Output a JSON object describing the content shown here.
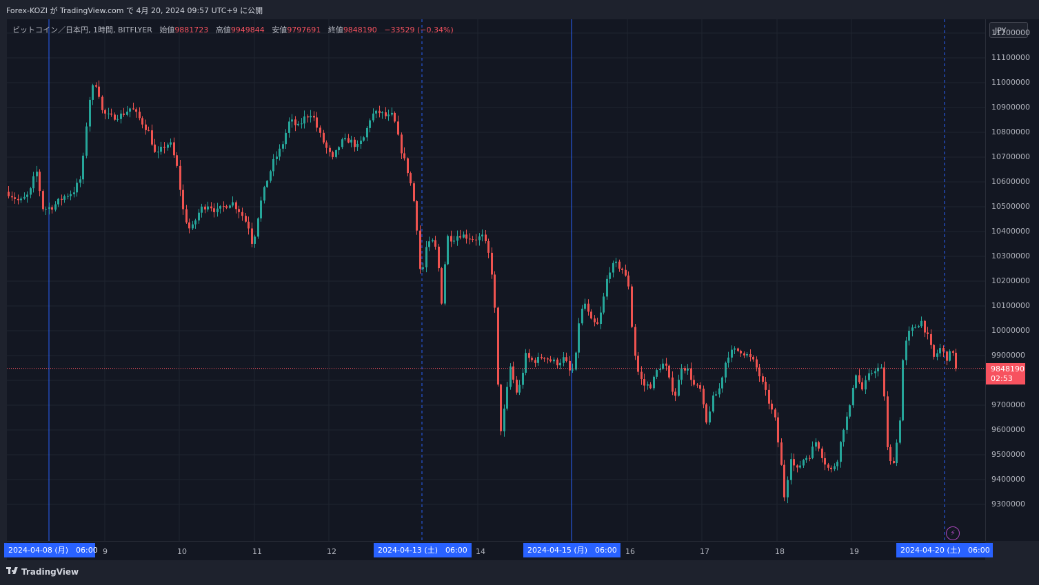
{
  "header": {
    "published": "Forex-KOZI が TradingView.com で 4月 20, 2024 09:57 UTC+9 に公開"
  },
  "legend": {
    "symbol": "ビットコイン／日本円, 1時間, BITFLYER",
    "open_label": "始値",
    "open": "9881723",
    "high_label": "高値",
    "high": "9949844",
    "low_label": "安値",
    "low": "9797691",
    "close_label": "終値",
    "close": "9848190",
    "change": "−33529 (−0.34%)"
  },
  "currency": "JPY",
  "last_price": {
    "value": "9848190",
    "countdown": "02:53"
  },
  "footer": {
    "brand": "TradingView"
  },
  "icons": [
    "tradingview-logo-icon",
    "lightning-icon"
  ],
  "colors": {
    "up": "#26a69a",
    "down": "#ef5350",
    "background": "#131722",
    "highlight": "#2962ff",
    "last": "#f7525f"
  },
  "chart_data": {
    "type": "candlestick",
    "timeframe": "1時間",
    "ylim": [
      9220000,
      11300000
    ],
    "y_ticks": [
      "11200000",
      "11100000",
      "11000000",
      "10900000",
      "10800000",
      "10700000",
      "10600000",
      "10500000",
      "10400000",
      "10300000",
      "10200000",
      "10100000",
      "10000000",
      "9900000",
      "9800000",
      "9700000",
      "9600000",
      "9500000",
      "9400000",
      "9300000"
    ],
    "x_labels": [
      "9",
      "10",
      "11",
      "12",
      "14",
      "16",
      "17",
      "18",
      "19"
    ],
    "highlight_labels": [
      "2024-04-08 (月)　06:00",
      "2024-04-13 (土)　06:00",
      "2024-04-15 (月)　06:00",
      "2024-04-20 (土)　06:00"
    ],
    "last_price": 9848190,
    "path": [
      [
        0,
        10560000
      ],
      [
        18,
        10520000
      ],
      [
        32,
        10550000
      ],
      [
        42,
        10650000
      ],
      [
        52,
        10490000
      ],
      [
        66,
        10500000
      ],
      [
        82,
        10540000
      ],
      [
        96,
        10560000
      ],
      [
        108,
        10620000
      ],
      [
        118,
        10920000
      ],
      [
        124,
        10980000
      ],
      [
        130,
        11000000
      ],
      [
        138,
        10880000
      ],
      [
        150,
        10860000
      ],
      [
        166,
        10870000
      ],
      [
        180,
        10900000
      ],
      [
        196,
        10840000
      ],
      [
        206,
        10800000
      ],
      [
        216,
        10700000
      ],
      [
        226,
        10740000
      ],
      [
        236,
        10760000
      ],
      [
        246,
        10660000
      ],
      [
        256,
        10470000
      ],
      [
        266,
        10400000
      ],
      [
        280,
        10490000
      ],
      [
        292,
        10510000
      ],
      [
        304,
        10480000
      ],
      [
        314,
        10500000
      ],
      [
        326,
        10520000
      ],
      [
        338,
        10480000
      ],
      [
        350,
        10420000
      ],
      [
        356,
        10340000
      ],
      [
        366,
        10500000
      ],
      [
        376,
        10600000
      ],
      [
        386,
        10680000
      ],
      [
        398,
        10740000
      ],
      [
        410,
        10850000
      ],
      [
        422,
        10820000
      ],
      [
        432,
        10860000
      ],
      [
        442,
        10880000
      ],
      [
        452,
        10800000
      ],
      [
        462,
        10740000
      ],
      [
        472,
        10690000
      ],
      [
        484,
        10760000
      ],
      [
        496,
        10770000
      ],
      [
        508,
        10740000
      ],
      [
        518,
        10780000
      ],
      [
        528,
        10870000
      ],
      [
        540,
        10880000
      ],
      [
        552,
        10860000
      ],
      [
        560,
        10870000
      ],
      [
        570,
        10740000
      ],
      [
        580,
        10650000
      ],
      [
        588,
        10560000
      ],
      [
        594,
        10420000
      ],
      [
        600,
        10200000
      ],
      [
        608,
        10340000
      ],
      [
        618,
        10360000
      ],
      [
        624,
        10310000
      ],
      [
        630,
        10110000
      ],
      [
        638,
        10380000
      ],
      [
        646,
        10370000
      ],
      [
        656,
        10390000
      ],
      [
        666,
        10380000
      ],
      [
        678,
        10370000
      ],
      [
        690,
        10380000
      ],
      [
        698,
        10310000
      ],
      [
        706,
        10180000
      ],
      [
        710,
        9840000
      ],
      [
        716,
        9600000
      ],
      [
        722,
        9700000
      ],
      [
        730,
        9860000
      ],
      [
        738,
        9750000
      ],
      [
        744,
        9780000
      ],
      [
        752,
        9900000
      ],
      [
        760,
        9880000
      ],
      [
        768,
        9880000
      ],
      [
        778,
        9900000
      ],
      [
        788,
        9880000
      ],
      [
        798,
        9870000
      ],
      [
        808,
        9890000
      ],
      [
        818,
        9820000
      ],
      [
        824,
        9880000
      ],
      [
        830,
        10060000
      ],
      [
        838,
        10110000
      ],
      [
        846,
        10040000
      ],
      [
        856,
        10020000
      ],
      [
        862,
        10080000
      ],
      [
        872,
        10240000
      ],
      [
        882,
        10270000
      ],
      [
        892,
        10250000
      ],
      [
        902,
        10180000
      ],
      [
        908,
        9940000
      ],
      [
        916,
        9820000
      ],
      [
        924,
        9780000
      ],
      [
        934,
        9780000
      ],
      [
        944,
        9850000
      ],
      [
        954,
        9870000
      ],
      [
        962,
        9780000
      ],
      [
        970,
        9740000
      ],
      [
        978,
        9860000
      ],
      [
        988,
        9840000
      ],
      [
        996,
        9780000
      ],
      [
        1006,
        9760000
      ],
      [
        1014,
        9620000
      ],
      [
        1022,
        9720000
      ],
      [
        1032,
        9760000
      ],
      [
        1044,
        9900000
      ],
      [
        1054,
        9920000
      ],
      [
        1064,
        9920000
      ],
      [
        1074,
        9900000
      ],
      [
        1084,
        9870000
      ],
      [
        1094,
        9800000
      ],
      [
        1104,
        9720000
      ],
      [
        1114,
        9640000
      ],
      [
        1122,
        9480000
      ],
      [
        1128,
        9320000
      ],
      [
        1136,
        9500000
      ],
      [
        1144,
        9430000
      ],
      [
        1154,
        9480000
      ],
      [
        1164,
        9500000
      ],
      [
        1174,
        9560000
      ],
      [
        1184,
        9480000
      ],
      [
        1194,
        9430000
      ],
      [
        1204,
        9480000
      ],
      [
        1214,
        9620000
      ],
      [
        1222,
        9680000
      ],
      [
        1230,
        9840000
      ],
      [
        1240,
        9760000
      ],
      [
        1250,
        9820000
      ],
      [
        1260,
        9850000
      ],
      [
        1270,
        9840000
      ],
      [
        1278,
        9460000
      ],
      [
        1286,
        9480000
      ],
      [
        1294,
        9610000
      ],
      [
        1300,
        9920000
      ],
      [
        1308,
        9990000
      ],
      [
        1318,
        10020000
      ],
      [
        1326,
        10040000
      ],
      [
        1336,
        9970000
      ],
      [
        1344,
        9890000
      ],
      [
        1354,
        9930000
      ],
      [
        1362,
        9890000
      ],
      [
        1372,
        9920000
      ],
      [
        1377,
        9848190
      ]
    ]
  }
}
